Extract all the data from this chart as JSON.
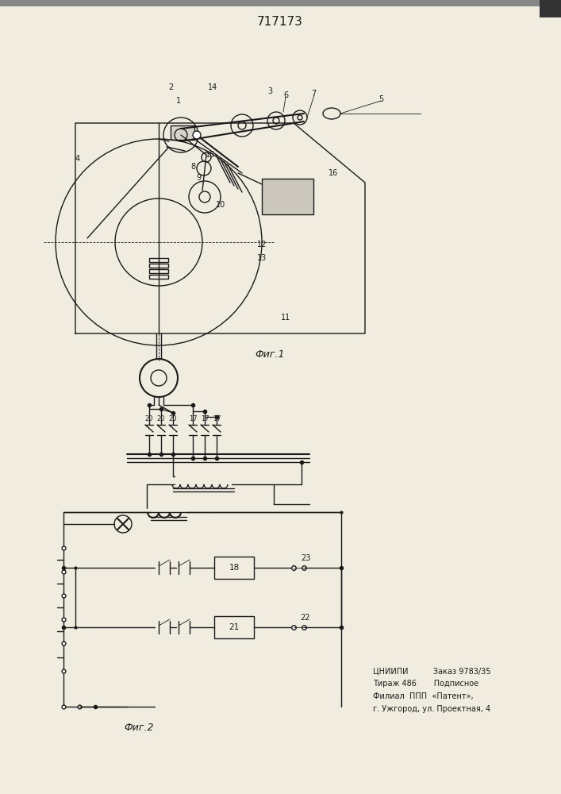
{
  "title": "717173",
  "fig1_label": "Фиг.1",
  "fig2_label": "Фиг.2",
  "footer_line1": "ЦНИИПИ          Заказ 9783/35",
  "footer_line2": "Тираж 486       Подписное",
  "footer_line3": "Филиал  ППП  «Патент»,",
  "footer_line4": "г. Ужгород, ул. Проектная, 4",
  "bg_color": "#f0ece0",
  "line_color": "#1a1a1a",
  "label_color": "#1a1a1a"
}
